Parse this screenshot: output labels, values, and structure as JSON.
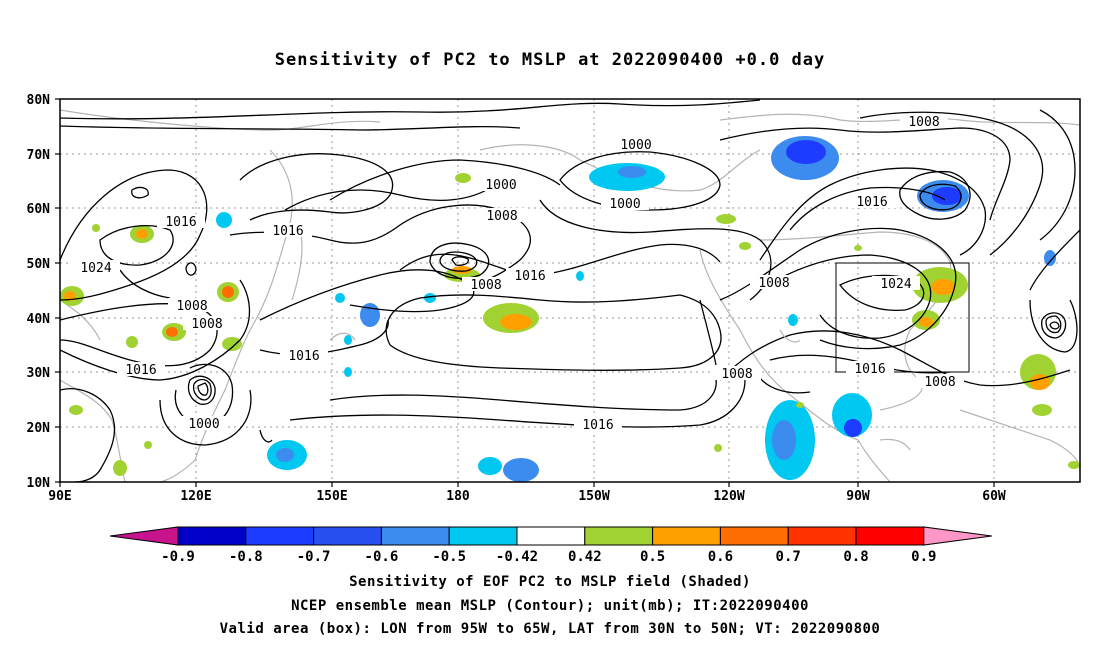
{
  "title": "Sensitivity of PC2 to MSLP at 2022090400 +0.0 day",
  "map": {
    "lat_labels": [
      "80N",
      "70N",
      "60N",
      "50N",
      "40N",
      "30N",
      "20N",
      "10N"
    ],
    "lon_labels": [
      "90E",
      "120E",
      "150E",
      "180",
      "150W",
      "120W",
      "90W",
      "60W"
    ],
    "contour_labels": [
      {
        "text": "1000"
      },
      {
        "text": "1000"
      },
      {
        "text": "1000"
      },
      {
        "text": "1008"
      },
      {
        "text": "1016"
      },
      {
        "text": "1016"
      },
      {
        "text": "1024"
      },
      {
        "text": "1016"
      },
      {
        "text": "1008"
      },
      {
        "text": "1008"
      },
      {
        "text": "1008"
      },
      {
        "text": "1016"
      },
      {
        "text": "1016"
      },
      {
        "text": "1000"
      },
      {
        "text": "1016"
      },
      {
        "text": "1008"
      },
      {
        "text": "1024"
      },
      {
        "text": "1016"
      },
      {
        "text": "1016"
      },
      {
        "text": "1008"
      },
      {
        "text": "1008"
      },
      {
        "text": "1008"
      }
    ],
    "colors": {
      "land": "#b4b4b4",
      "contour": "#000000",
      "grid": "#9a9a9a",
      "box": "#000000"
    }
  },
  "colorbar": {
    "labels": [
      "-0.9",
      "-0.8",
      "-0.7",
      "-0.6",
      "-0.5",
      "-0.42",
      "0.42",
      "0.5",
      "0.6",
      "0.7",
      "0.8",
      "0.9"
    ],
    "colors": [
      "#0000c8",
      "#1e3cff",
      "#2850f0",
      "#3c8cf0",
      "#00c8f0",
      "#ffffff",
      "#a0d232",
      "#ffa000",
      "#ff6e00",
      "#ff3200",
      "#ff0000"
    ],
    "under_color": "#c8148c",
    "over_color": "#ff96c8"
  },
  "captions": {
    "line1": "Sensitivity of EOF PC2 to MSLP field (Shaded)",
    "line2": "NCEP ensemble mean MSLP (Contour); unit(mb); IT:2022090400",
    "line3": "Valid area (box): LON from 95W to 65W, LAT from 30N to 50N; VT: 2022090800"
  }
}
